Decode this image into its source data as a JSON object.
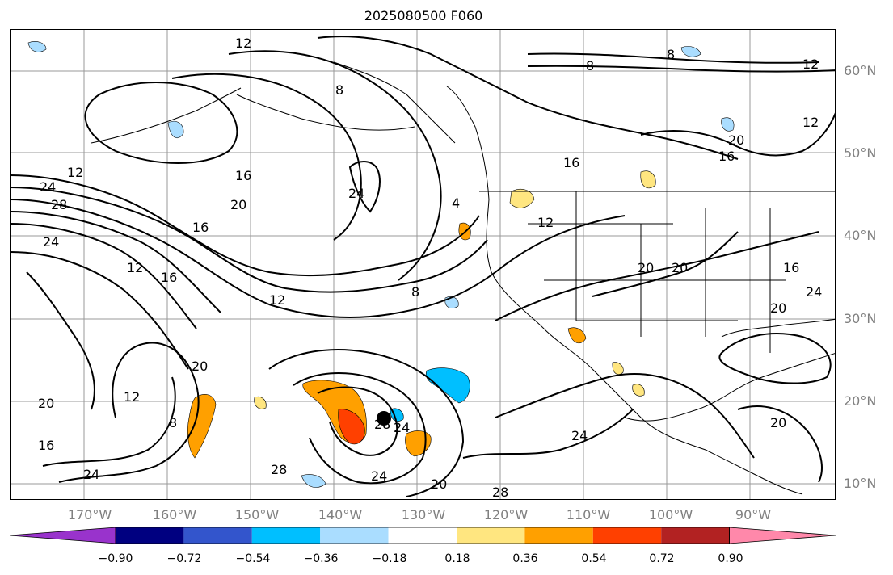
{
  "title": "2025080500 F060",
  "lat_labels": [
    "60°N",
    "50°N",
    "40°N",
    "30°N",
    "20°N",
    "10°N"
  ],
  "lon_labels": [
    "170°W",
    "160°W",
    "150°W",
    "140°W",
    "130°W",
    "120°W",
    "110°W",
    "100°W",
    "90°W"
  ],
  "contour_labels": [
    "12",
    "8",
    "8",
    "12",
    "8",
    "24",
    "16",
    "16",
    "20",
    "16",
    "24",
    "28",
    "12",
    "4",
    "24",
    "16",
    "12",
    "12",
    "8",
    "20",
    "20",
    "20",
    "16",
    "12",
    "20",
    "12",
    "8",
    "20",
    "16",
    "28",
    "24",
    "28",
    "24",
    "20",
    "28",
    "24",
    "20",
    "24",
    "12",
    "20",
    "16",
    "24"
  ],
  "colorbar": {
    "ticks": [
      "−0.90",
      "−0.72",
      "−0.54",
      "−0.36",
      "−0.18",
      "0.18",
      "0.36",
      "0.54",
      "0.72",
      "0.90"
    ],
    "colors": [
      "#9933CC",
      "#000080",
      "#3355CC",
      "#00BFFF",
      "#AADDFF",
      "#FFFFFF",
      "#FFE680",
      "#FFA000",
      "#FF4000",
      "#B22222",
      "#FF88AA"
    ]
  },
  "storm_marker": "tropical-cyclone-center"
}
